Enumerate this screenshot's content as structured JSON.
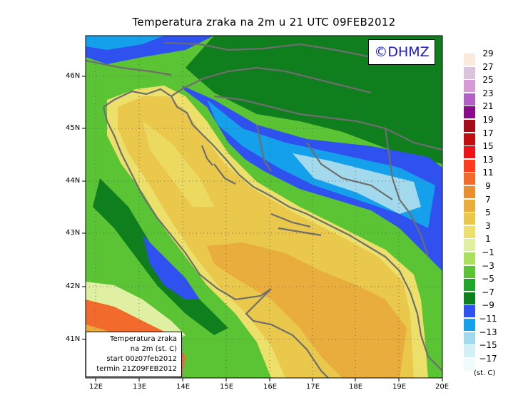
{
  "title": "Temperatura zraka na 2m u 21 UTC 09FEB2012",
  "copyright": "©DHMZ",
  "info_box": {
    "line1": "Temperatura zraka",
    "line2": "na 2m (st. C)",
    "line3": "start 00z07feb2012",
    "line4": "termin 21Z09FEB2012"
  },
  "lat_labels": [
    "46N",
    "45N",
    "44N",
    "43N",
    "42N",
    "41N"
  ],
  "lon_labels": [
    "12E",
    "13E",
    "14E",
    "15E",
    "16E",
    "17E",
    "18E",
    "19E",
    "20E"
  ],
  "legend": {
    "unit": "(st. C)",
    "labels": [
      "29",
      "27",
      "25",
      "23",
      "21",
      "19",
      "17",
      "15",
      "13",
      "11",
      "9",
      "7",
      "5",
      "3",
      "1",
      "−1",
      "−3",
      "−5",
      "−7",
      "−9",
      "−11",
      "−13",
      "−15",
      "−17"
    ],
    "colors": [
      "#fbeadb",
      "#dcc3dc",
      "#d79ad5",
      "#b25fc6",
      "#8a0a8a",
      "#a30c18",
      "#c20e10",
      "#ee1318",
      "#ff3c1e",
      "#f26a2c",
      "#e98f30",
      "#e8ad3c",
      "#e9c84b",
      "#ece06a",
      "#dff0a2",
      "#a9e05e",
      "#5ac434",
      "#1ea628",
      "#0f7f1e",
      "#2e51f0",
      "#15a0ec",
      "#a3d9ec",
      "#d5eff6",
      "#f0fbfd"
    ]
  },
  "map_colors": {
    "ocean": "#e9c84b",
    "warm_core": "#e8ad3c",
    "coast_light": "#ece06a",
    "land_green": "#5ac434",
    "land_dark": "#0f7f1e",
    "mountain_blue": "#2e51f0",
    "mountain_cyan": "#15a0ec",
    "mountain_pale": "#a3d9ec",
    "south_orange": "#f26a2c",
    "border": "#6e6e6e"
  }
}
